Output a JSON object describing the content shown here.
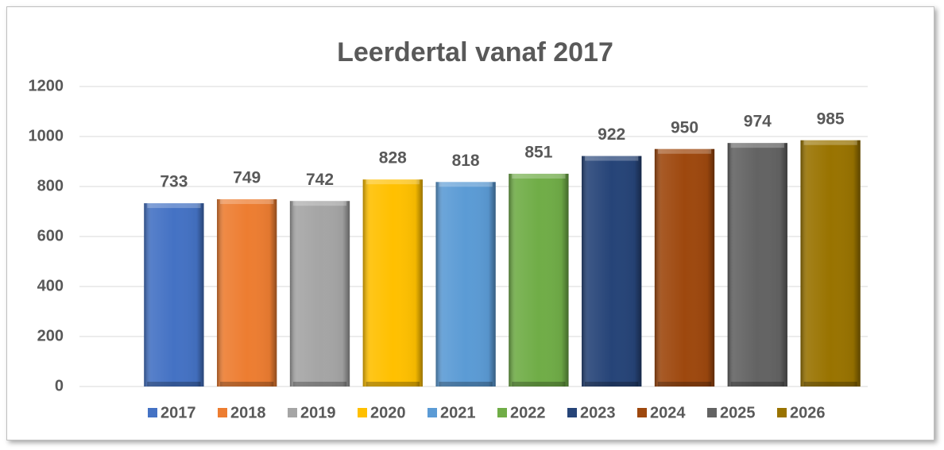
{
  "chart_data": {
    "type": "bar",
    "title": "Leerdertal vanaf 2017",
    "categories": [
      null
    ],
    "series": [
      {
        "name": "2017",
        "color": "#4472c4",
        "values": [
          733
        ]
      },
      {
        "name": "2018",
        "color": "#ed7d31",
        "values": [
          749
        ]
      },
      {
        "name": "2019",
        "color": "#a5a5a5",
        "values": [
          742
        ]
      },
      {
        "name": "2020",
        "color": "#ffc000",
        "values": [
          828
        ]
      },
      {
        "name": "2021",
        "color": "#5b9bd5",
        "values": [
          818
        ]
      },
      {
        "name": "2022",
        "color": "#70ad47",
        "values": [
          851
        ]
      },
      {
        "name": "2023",
        "color": "#264478",
        "values": [
          922
        ]
      },
      {
        "name": "2024",
        "color": "#9e480e",
        "values": [
          950
        ]
      },
      {
        "name": "2025",
        "color": "#636363",
        "values": [
          974
        ]
      },
      {
        "name": "2026",
        "color": "#997300",
        "values": [
          985
        ]
      }
    ],
    "ylim": [
      0,
      1200
    ],
    "yticks": [
      0,
      200,
      400,
      600,
      800,
      1000,
      1200
    ],
    "grid": true,
    "legend": "bottom"
  }
}
